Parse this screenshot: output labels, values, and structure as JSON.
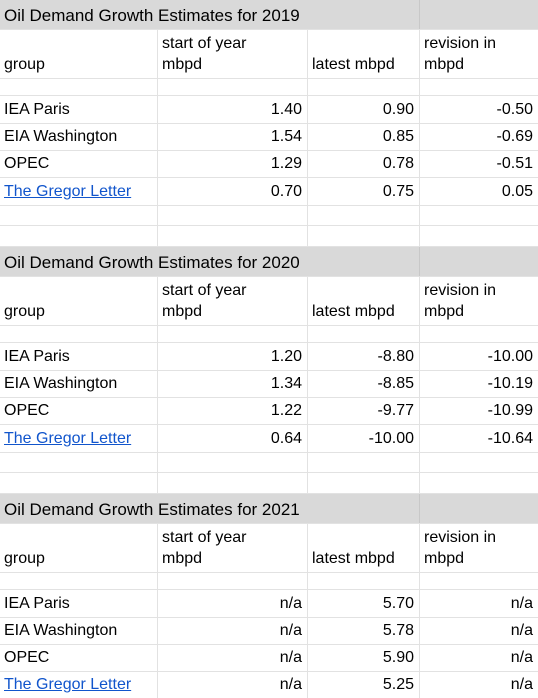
{
  "sections": [
    {
      "title": "Oil Demand Growth Estimates for 2019",
      "headers": {
        "group": "group",
        "start_line1": "start of year",
        "start_line2": "mbpd",
        "latest": "latest mbpd",
        "rev_line1": "revision in",
        "rev_line2": "mbpd"
      },
      "rows": [
        {
          "group": "IEA Paris",
          "start": "1.40",
          "latest": "0.90",
          "revision": "-0.50"
        },
        {
          "group": "EIA Washington",
          "start": "1.54",
          "latest": "0.85",
          "revision": "-0.69"
        },
        {
          "group": "OPEC",
          "start": "1.29",
          "latest": "0.78",
          "revision": "-0.51"
        },
        {
          "group": "The Gregor Letter",
          "start": "0.70",
          "latest": "0.75",
          "revision": "0.05"
        }
      ]
    },
    {
      "title": "Oil Demand Growth Estimates for 2020",
      "headers": {
        "group": "group",
        "start_line1": "start of year",
        "start_line2": "mbpd",
        "latest": "latest mbpd",
        "rev_line1": "revision in",
        "rev_line2": "mbpd"
      },
      "rows": [
        {
          "group": "IEA Paris",
          "start": "1.20",
          "latest": "-8.80",
          "revision": "-10.00"
        },
        {
          "group": "EIA Washington",
          "start": "1.34",
          "latest": "-8.85",
          "revision": "-10.19"
        },
        {
          "group": "OPEC",
          "start": "1.22",
          "latest": "-9.77",
          "revision": "-10.99"
        },
        {
          "group": "The Gregor Letter",
          "start": "0.64",
          "latest": "-10.00",
          "revision": "-10.64"
        }
      ]
    },
    {
      "title": "Oil Demand Growth Estimates for 2021",
      "headers": {
        "group": "group",
        "start_line1": "start of year",
        "start_line2": "mbpd",
        "latest": "latest mbpd",
        "rev_line1": "revision in",
        "rev_line2": "mbpd"
      },
      "rows": [
        {
          "group": "IEA Paris",
          "start": "n/a",
          "latest": "5.70",
          "revision": "n/a"
        },
        {
          "group": "EIA Washington",
          "start": "n/a",
          "latest": "5.78",
          "revision": "n/a"
        },
        {
          "group": "OPEC",
          "start": "n/a",
          "latest": "5.90",
          "revision": "n/a"
        },
        {
          "group": "The Gregor Letter",
          "start": "n/a",
          "latest": "5.25",
          "revision": "n/a"
        }
      ]
    }
  ],
  "colors": {
    "title_band": "#d9d9d9",
    "gridline": "#e2e2e2",
    "link": "#1155cc"
  }
}
